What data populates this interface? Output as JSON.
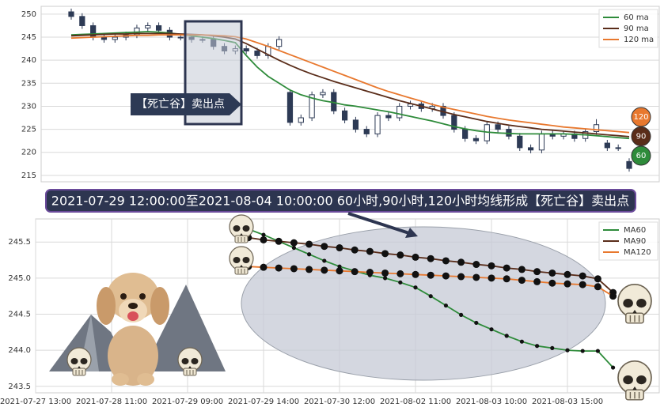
{
  "banner": "2021-07-29 12:00:00至2021-08-04 10:00:00 60小时,90小时,120小时均线形成【死亡谷】卖出点",
  "chart_data": [
    {
      "type": "candlestick",
      "annotation": "【死亡谷】卖出点",
      "badges": [
        "120",
        "90",
        "60"
      ],
      "ylim": [
        213.6,
        251.7
      ],
      "yticks": [
        215,
        220,
        225,
        230,
        235,
        240,
        245,
        250
      ],
      "grid": true,
      "legend": "upper right",
      "candle_color": "#2d3a55",
      "open": [
        250.5,
        249.5,
        247.5,
        245,
        244.5,
        245,
        245.5,
        247,
        247.5,
        246.5,
        245,
        245,
        244.5,
        244.5,
        243,
        242,
        242.5,
        242,
        241,
        243,
        233,
        226.5,
        227.5,
        232.5,
        233,
        229,
        227,
        225,
        224,
        228,
        227.5,
        230,
        230.5,
        229.5,
        230,
        228,
        225,
        223,
        222.5,
        226,
        225,
        223.5,
        221,
        220.5,
        224,
        223.5,
        224,
        223,
        224.5,
        222,
        221,
        218
      ],
      "high": [
        251.2,
        250.2,
        248.2,
        245.7,
        245.7,
        246.2,
        247.7,
        248.2,
        248.2,
        247.2,
        245.7,
        245.7,
        245.2,
        245.2,
        243.7,
        243.2,
        243.2,
        242.7,
        243.7,
        245.2,
        233.7,
        228.2,
        233.2,
        233.7,
        233.7,
        229.7,
        227.7,
        225.7,
        228.7,
        228.7,
        230.7,
        231.2,
        231.2,
        230.7,
        230.7,
        228.7,
        225.7,
        223.7,
        226.7,
        226.7,
        225.7,
        224.2,
        221.7,
        224.7,
        224.7,
        224.7,
        224.7,
        225.2,
        227.2,
        222.7,
        221.7,
        218.7
      ],
      "low": [
        248.8,
        246.8,
        244.3,
        243.8,
        243.8,
        244.3,
        244.8,
        246.3,
        245.8,
        244.3,
        244.3,
        243.8,
        243.8,
        242.3,
        241.3,
        241.3,
        241.3,
        240.3,
        240.3,
        242.3,
        225.8,
        225.8,
        226.8,
        231.8,
        228.3,
        226.3,
        224.3,
        223.3,
        223.3,
        226.8,
        226.8,
        229.3,
        228.8,
        228.8,
        227.3,
        224.3,
        222.3,
        221.8,
        221.8,
        224.3,
        222.8,
        220.3,
        219.8,
        219.8,
        222.8,
        222.8,
        222.3,
        222.3,
        223.8,
        220.3,
        220.3,
        215.8
      ],
      "close": [
        249.5,
        247.5,
        245,
        244.5,
        245,
        245.5,
        247,
        247.5,
        246.5,
        245,
        245,
        244.5,
        244.5,
        243,
        242,
        242.5,
        242,
        241,
        243,
        244.5,
        226.5,
        227.5,
        232.5,
        233,
        229,
        227,
        225,
        224,
        228,
        227.5,
        230,
        230.5,
        229.5,
        230,
        228,
        225,
        223,
        222.5,
        226,
        225,
        223.5,
        221,
        220.5,
        224,
        223.5,
        224,
        223,
        224.5,
        226,
        221,
        221,
        216.5
      ],
      "series": [
        {
          "name": "60 ma",
          "color": "#2e8b3a",
          "values": [
            245.5,
            245.6,
            245.7,
            245.8,
            245.9,
            246,
            246.1,
            246.2,
            246.1,
            245.9,
            245.6,
            245.3,
            245,
            244.7,
            244.3,
            243.8,
            241,
            238.5,
            236.5,
            235,
            233.5,
            232.5,
            231.8,
            231.2,
            230.8,
            230.3,
            230,
            229.6,
            229.2,
            228.8,
            228.3,
            227.8,
            227.3,
            226.8,
            226.2,
            225.6,
            225.1,
            224.7,
            224.4,
            224.2,
            224.1,
            224,
            224,
            224,
            224,
            224,
            223.9,
            223.8,
            223.6,
            223.4,
            223.2,
            223
          ]
        },
        {
          "name": "90 ma",
          "color": "#5a2d1a",
          "values": [
            245.3,
            245.4,
            245.5,
            245.6,
            245.7,
            245.7,
            245.8,
            245.8,
            245.8,
            245.8,
            245.7,
            245.6,
            245.5,
            245.3,
            245,
            244.6,
            243.6,
            242.4,
            241.2,
            240,
            238.9,
            237.9,
            237,
            236.2,
            235.4,
            234.7,
            234,
            233.3,
            232.6,
            231.9,
            231.2,
            230.6,
            230,
            229.4,
            228.8,
            228.2,
            227.7,
            227.2,
            226.7,
            226.3,
            225.9,
            225.6,
            225.3,
            225,
            224.8,
            224.6,
            224.4,
            224.2,
            224,
            223.8,
            223.6,
            223.4
          ]
        },
        {
          "name": "120 ma",
          "color": "#e8782e",
          "values": [
            244.8,
            244.9,
            245,
            245.1,
            245.2,
            245.3,
            245.4,
            245.4,
            245.5,
            245.5,
            245.5,
            245.5,
            245.5,
            245.4,
            245.3,
            245.1,
            244.6,
            243.8,
            243,
            242.1,
            241.2,
            240.3,
            239.4,
            238.5,
            237.6,
            236.7,
            235.8,
            234.9,
            234,
            233.2,
            232.5,
            231.8,
            231.1,
            230.4,
            229.8,
            229.3,
            228.8,
            228.3,
            227.8,
            227.4,
            227,
            226.7,
            226.4,
            226.1,
            225.8,
            225.5,
            225.3,
            225.1,
            224.9,
            224.7,
            224.5,
            224.3
          ]
        }
      ]
    },
    {
      "type": "line",
      "categories": [
        "2021-07-27 13:00",
        null,
        null,
        null,
        null,
        "2021-07-28 11:00",
        null,
        null,
        null,
        null,
        "2021-07-29 09:00",
        null,
        null,
        null,
        null,
        "2021-07-29 14:00",
        null,
        null,
        null,
        null,
        "2021-07-30 12:00",
        null,
        null,
        null,
        null,
        "2021-08-02 11:00",
        null,
        null,
        null,
        null,
        "2021-08-03 10:00",
        null,
        null,
        null,
        null,
        "2021-08-03 15:00",
        null,
        null,
        null,
        null,
        null
      ],
      "ylim": [
        243.41,
        245.82
      ],
      "yticks": [
        243.5,
        {
          "value": 244,
          "label": "244.0"
        },
        244.5,
        {
          "value": 245,
          "label": "245.0"
        },
        245.5
      ],
      "grid": true,
      "legend": "upper right",
      "series": [
        {
          "name": "MA60",
          "color": "#2e8b3a",
          "marker_size": 2.6,
          "values": [
            null,
            null,
            null,
            null,
            null,
            null,
            null,
            null,
            null,
            null,
            null,
            null,
            null,
            null,
            245.68,
            245.6,
            245.51,
            245.42,
            245.33,
            245.24,
            245.16,
            245.1,
            245.04,
            245.0,
            244.94,
            244.87,
            244.75,
            244.62,
            244.49,
            244.38,
            244.29,
            244.2,
            244.12,
            244.06,
            244.03,
            244.0,
            243.99,
            243.99,
            243.76,
            null,
            null
          ]
        },
        {
          "name": "MA90",
          "color": "#5a2d1a",
          "marker_size": 4.5,
          "values": [
            null,
            null,
            null,
            null,
            null,
            null,
            null,
            null,
            null,
            null,
            null,
            null,
            null,
            null,
            245.56,
            245.53,
            245.51,
            245.49,
            245.47,
            245.44,
            245.42,
            245.39,
            245.37,
            245.34,
            245.32,
            245.29,
            245.27,
            245.24,
            245.22,
            245.19,
            245.17,
            245.14,
            245.12,
            245.09,
            245.07,
            245.05,
            245.03,
            244.99,
            244.8,
            null,
            null
          ]
        },
        {
          "name": "MA120",
          "color": "#e8782e",
          "marker_size": 4.5,
          "values": [
            null,
            null,
            null,
            null,
            null,
            null,
            null,
            null,
            null,
            null,
            null,
            null,
            null,
            null,
            245.16,
            245.15,
            245.14,
            245.13,
            245.12,
            245.11,
            245.1,
            245.09,
            245.08,
            245.07,
            245.06,
            245.05,
            245.04,
            245.03,
            245.02,
            245.01,
            245.0,
            244.99,
            244.97,
            244.95,
            244.93,
            244.92,
            244.91,
            244.88,
            244.75,
            null,
            null
          ]
        }
      ]
    }
  ]
}
